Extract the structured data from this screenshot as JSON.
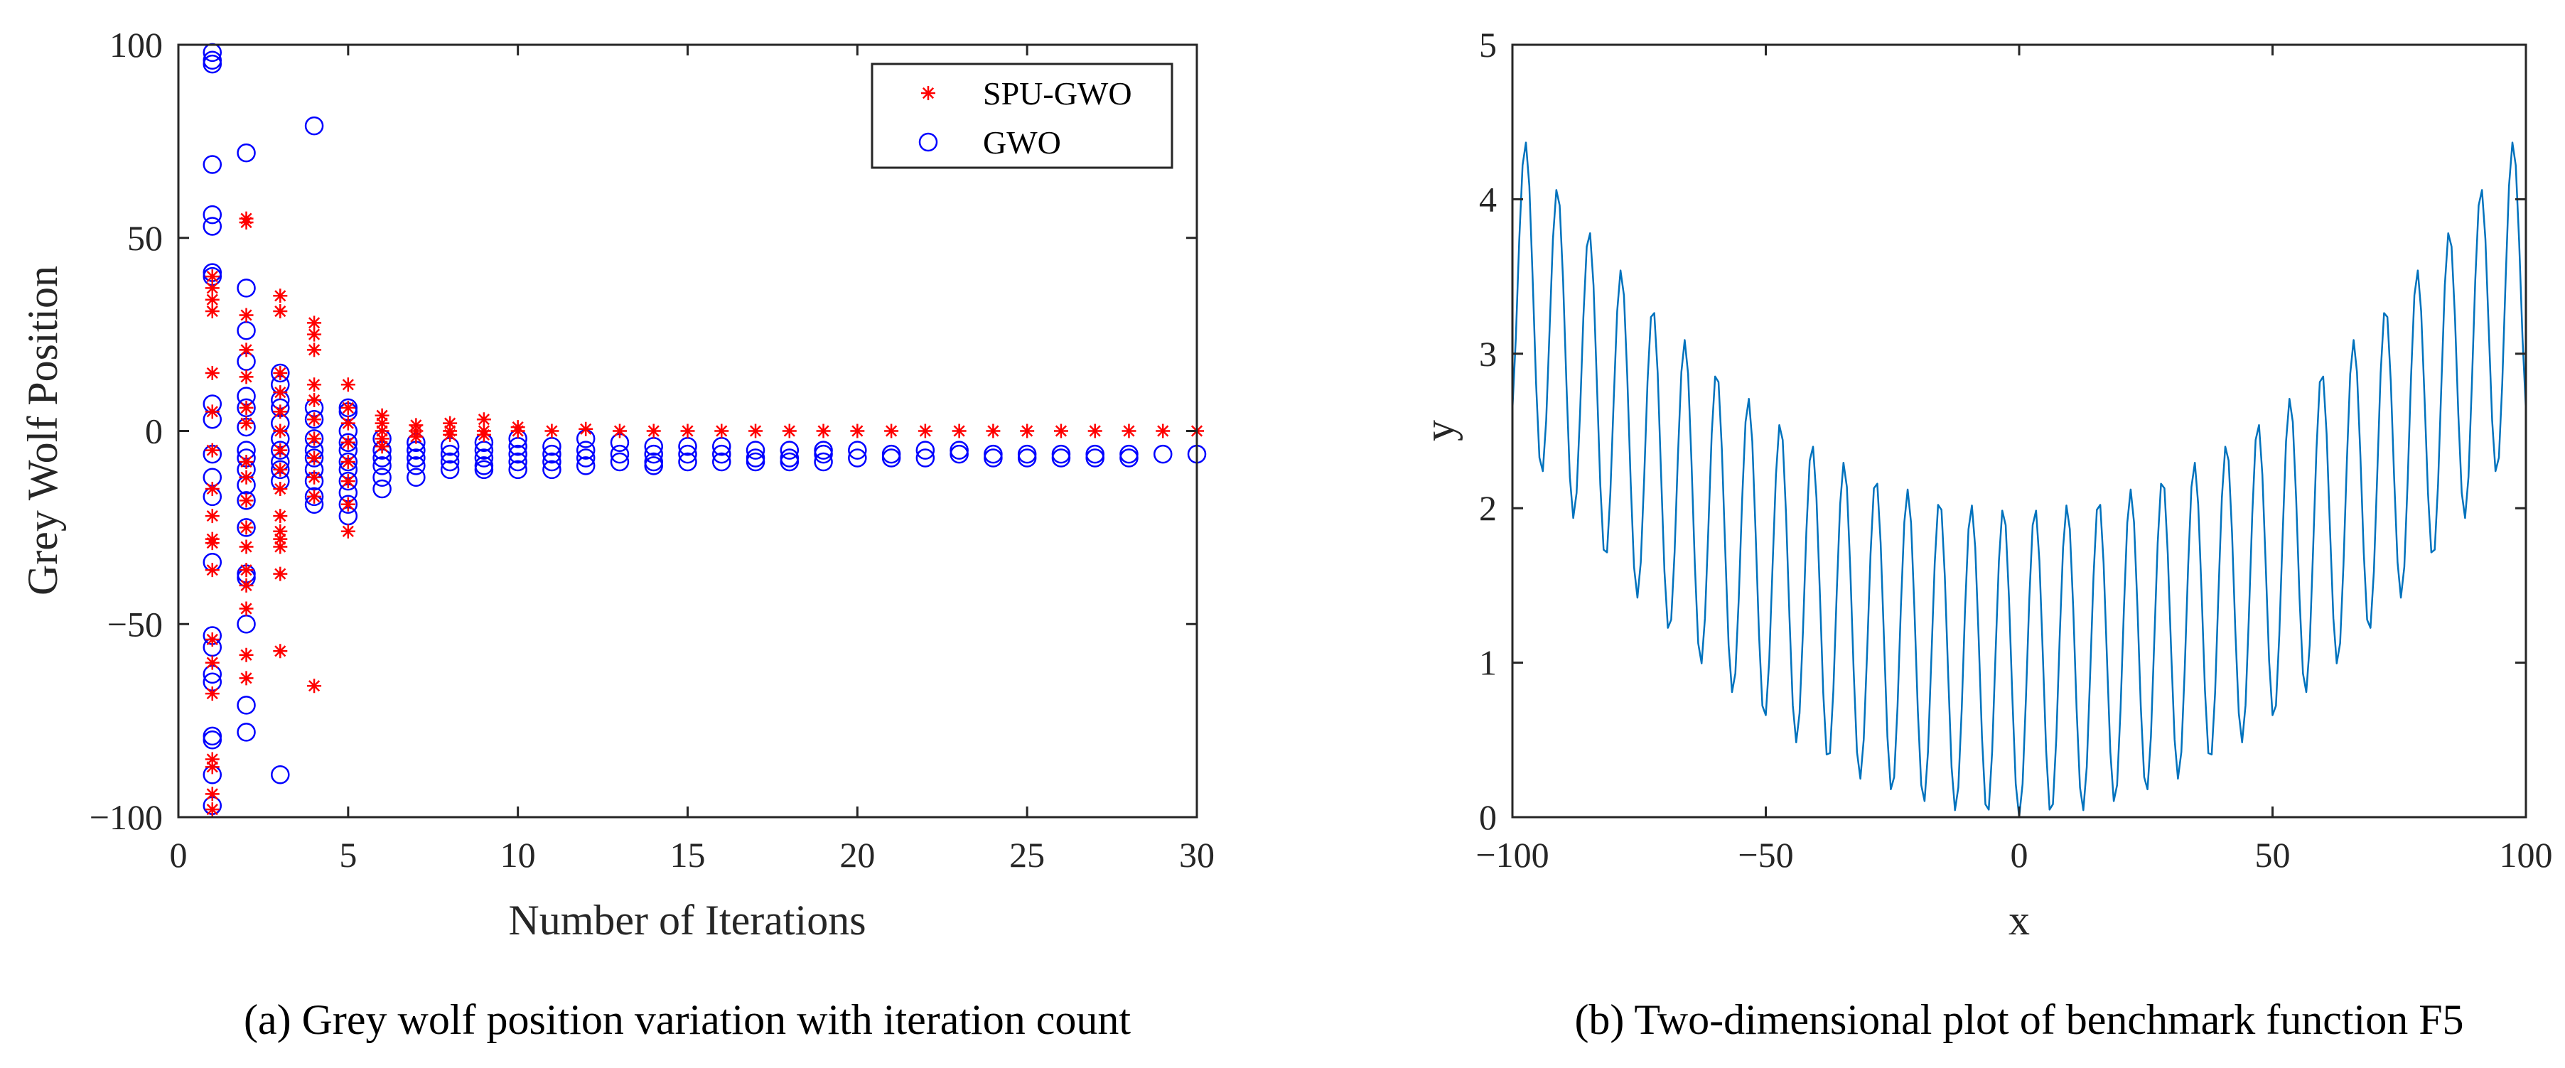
{
  "chart_data": [
    {
      "type": "scatter",
      "xlabel": "Number of Iterations",
      "ylabel": "Grey Wolf Position",
      "xlim": [
        0,
        30
      ],
      "ylim": [
        -100,
        100
      ],
      "xticks": [
        "0",
        "5",
        "10",
        "15",
        "20",
        "25",
        "30"
      ],
      "yticks": [
        "100",
        "50",
        "0",
        "−50",
        "−100"
      ],
      "grid": false,
      "legend_position": "top-right",
      "caption": "(a) Grey wolf position variation with iteration count",
      "series": [
        {
          "name": "SPU-GWO",
          "marker": "asterisk",
          "color": "#ff0000",
          "points": [
            [
              1,
              40
            ],
            [
              1,
              37
            ],
            [
              1,
              34
            ],
            [
              1,
              31
            ],
            [
              1,
              15
            ],
            [
              1,
              5
            ],
            [
              1,
              -5
            ],
            [
              1,
              -15
            ],
            [
              1,
              -22
            ],
            [
              1,
              -28
            ],
            [
              1,
              -29
            ],
            [
              1,
              -36
            ],
            [
              1,
              -54
            ],
            [
              1,
              -60
            ],
            [
              1,
              -68
            ],
            [
              1,
              -85
            ],
            [
              1,
              -87
            ],
            [
              1,
              -94
            ],
            [
              1,
              -98
            ],
            [
              2,
              55
            ],
            [
              2,
              54
            ],
            [
              2,
              30
            ],
            [
              2,
              21
            ],
            [
              2,
              14
            ],
            [
              2,
              6
            ],
            [
              2,
              2
            ],
            [
              2,
              -8
            ],
            [
              2,
              -12
            ],
            [
              2,
              -18
            ],
            [
              2,
              -25
            ],
            [
              2,
              -30
            ],
            [
              2,
              -36
            ],
            [
              2,
              -40
            ],
            [
              2,
              -46
            ],
            [
              2,
              -58
            ],
            [
              2,
              -64
            ],
            [
              3,
              35
            ],
            [
              3,
              31
            ],
            [
              3,
              15
            ],
            [
              3,
              10
            ],
            [
              3,
              5
            ],
            [
              3,
              0
            ],
            [
              3,
              -5
            ],
            [
              3,
              -10
            ],
            [
              3,
              -15
            ],
            [
              3,
              -22
            ],
            [
              3,
              -26
            ],
            [
              3,
              -28
            ],
            [
              3,
              -30
            ],
            [
              3,
              -37
            ],
            [
              3,
              -57
            ],
            [
              4,
              28
            ],
            [
              4,
              25
            ],
            [
              4,
              21
            ],
            [
              4,
              12
            ],
            [
              4,
              8
            ],
            [
              4,
              3
            ],
            [
              4,
              -2
            ],
            [
              4,
              -7
            ],
            [
              4,
              -12
            ],
            [
              4,
              -17
            ],
            [
              4,
              -66
            ],
            [
              5,
              12
            ],
            [
              5,
              6
            ],
            [
              5,
              2
            ],
            [
              5,
              -3
            ],
            [
              5,
              -8
            ],
            [
              5,
              -13
            ],
            [
              5,
              -19
            ],
            [
              5,
              -26
            ],
            [
              6,
              4
            ],
            [
              6,
              2
            ],
            [
              6,
              0
            ],
            [
              6,
              -2
            ],
            [
              6,
              -4
            ],
            [
              7,
              1.5
            ],
            [
              7,
              0
            ],
            [
              7,
              -1.5
            ],
            [
              8,
              2
            ],
            [
              8,
              0
            ],
            [
              8,
              -1
            ],
            [
              9,
              3
            ],
            [
              9,
              0
            ],
            [
              9,
              -1
            ],
            [
              10,
              1
            ],
            [
              10,
              0
            ],
            [
              11,
              0
            ],
            [
              12,
              0.5
            ],
            [
              13,
              0
            ],
            [
              14,
              0
            ],
            [
              15,
              0
            ],
            [
              16,
              0
            ],
            [
              17,
              0
            ],
            [
              18,
              0
            ],
            [
              19,
              0
            ],
            [
              20,
              0
            ],
            [
              21,
              0
            ],
            [
              22,
              0
            ],
            [
              23,
              0
            ],
            [
              24,
              0
            ],
            [
              25,
              0
            ],
            [
              26,
              0
            ],
            [
              27,
              0
            ],
            [
              28,
              0
            ],
            [
              29,
              0
            ],
            [
              30,
              0
            ]
          ]
        },
        {
          "name": "GWO",
          "marker": "circle",
          "color": "#0000ff",
          "points": [
            [
              1,
              98
            ],
            [
              1,
              96
            ],
            [
              1,
              95
            ],
            [
              1,
              69
            ],
            [
              1,
              56
            ],
            [
              1,
              53
            ],
            [
              1,
              41
            ],
            [
              1,
              40
            ],
            [
              1,
              7
            ],
            [
              1,
              3
            ],
            [
              1,
              -6
            ],
            [
              1,
              -12
            ],
            [
              1,
              -17
            ],
            [
              1,
              -34
            ],
            [
              1,
              -53
            ],
            [
              1,
              -56
            ],
            [
              1,
              -63
            ],
            [
              1,
              -65
            ],
            [
              1,
              -79
            ],
            [
              1,
              -80
            ],
            [
              1,
              -89
            ],
            [
              1,
              -97
            ],
            [
              2,
              72
            ],
            [
              2,
              37
            ],
            [
              2,
              26
            ],
            [
              2,
              18
            ],
            [
              2,
              9
            ],
            [
              2,
              6
            ],
            [
              2,
              1
            ],
            [
              2,
              -5
            ],
            [
              2,
              -7
            ],
            [
              2,
              -10
            ],
            [
              2,
              -14
            ],
            [
              2,
              -18
            ],
            [
              2,
              -25
            ],
            [
              2,
              -37
            ],
            [
              2,
              -38
            ],
            [
              2,
              -50
            ],
            [
              2,
              -71
            ],
            [
              2,
              -78
            ],
            [
              3,
              15
            ],
            [
              3,
              12
            ],
            [
              3,
              8
            ],
            [
              3,
              6
            ],
            [
              3,
              2
            ],
            [
              3,
              -2
            ],
            [
              3,
              -5
            ],
            [
              3,
              -8
            ],
            [
              3,
              -10
            ],
            [
              3,
              -13
            ],
            [
              3,
              -89
            ],
            [
              4,
              79
            ],
            [
              4,
              6
            ],
            [
              4,
              3
            ],
            [
              4,
              -2
            ],
            [
              4,
              -5
            ],
            [
              4,
              -7
            ],
            [
              4,
              -10
            ],
            [
              4,
              -13
            ],
            [
              4,
              -17
            ],
            [
              4,
              -19
            ],
            [
              5,
              6
            ],
            [
              5,
              5
            ],
            [
              5,
              0
            ],
            [
              5,
              -3
            ],
            [
              5,
              -5
            ],
            [
              5,
              -8
            ],
            [
              5,
              -10
            ],
            [
              5,
              -13
            ],
            [
              5,
              -16
            ],
            [
              5,
              -19
            ],
            [
              5,
              -22
            ],
            [
              6,
              -2
            ],
            [
              6,
              -5
            ],
            [
              6,
              -7
            ],
            [
              6,
              -9
            ],
            [
              6,
              -12
            ],
            [
              6,
              -15
            ],
            [
              7,
              -3
            ],
            [
              7,
              -5
            ],
            [
              7,
              -7
            ],
            [
              7,
              -9
            ],
            [
              7,
              -12
            ],
            [
              8,
              -4
            ],
            [
              8,
              -6
            ],
            [
              8,
              -8
            ],
            [
              8,
              -10
            ],
            [
              9,
              -3
            ],
            [
              9,
              -5
            ],
            [
              9,
              -7
            ],
            [
              9,
              -9
            ],
            [
              9,
              -10
            ],
            [
              10,
              -2
            ],
            [
              10,
              -4
            ],
            [
              10,
              -6
            ],
            [
              10,
              -8
            ],
            [
              10,
              -10
            ],
            [
              11,
              -4
            ],
            [
              11,
              -6
            ],
            [
              11,
              -8
            ],
            [
              11,
              -10
            ],
            [
              12,
              -2
            ],
            [
              12,
              -5
            ],
            [
              12,
              -7
            ],
            [
              12,
              -9
            ],
            [
              13,
              -3
            ],
            [
              13,
              -6
            ],
            [
              13,
              -8
            ],
            [
              14,
              -4
            ],
            [
              14,
              -6
            ],
            [
              14,
              -8
            ],
            [
              14,
              -9
            ],
            [
              15,
              -4
            ],
            [
              15,
              -6
            ],
            [
              15,
              -8
            ],
            [
              16,
              -4
            ],
            [
              16,
              -6
            ],
            [
              16,
              -8
            ],
            [
              17,
              -5
            ],
            [
              17,
              -7
            ],
            [
              17,
              -8
            ],
            [
              18,
              -5
            ],
            [
              18,
              -7
            ],
            [
              18,
              -8
            ],
            [
              19,
              -5
            ],
            [
              19,
              -6
            ],
            [
              19,
              -8
            ],
            [
              20,
              -5
            ],
            [
              20,
              -7
            ],
            [
              21,
              -6
            ],
            [
              21,
              -7
            ],
            [
              22,
              -5
            ],
            [
              22,
              -7
            ],
            [
              23,
              -5
            ],
            [
              23,
              -6
            ],
            [
              24,
              -6
            ],
            [
              24,
              -7
            ],
            [
              25,
              -6
            ],
            [
              25,
              -7
            ],
            [
              26,
              -6
            ],
            [
              26,
              -7
            ],
            [
              27,
              -6
            ],
            [
              27,
              -7
            ],
            [
              28,
              -6
            ],
            [
              28,
              -7
            ],
            [
              29,
              -6
            ],
            [
              30,
              -6
            ]
          ]
        }
      ]
    },
    {
      "type": "line",
      "xlabel": "x",
      "ylabel": "y",
      "xlim": [
        -100,
        100
      ],
      "ylim": [
        0,
        5
      ],
      "xticks": [
        "−100",
        "−50",
        "0",
        "50",
        "100"
      ],
      "yticks": [
        "5",
        "4",
        "3",
        "2",
        "1",
        "0"
      ],
      "grid": false,
      "color": "#0072bd",
      "caption": "(b) Two-dimensional plot of benchmark function F5",
      "series": [
        {
          "function": "y = x^2/4000 + 1 - cos(x)",
          "x_range": [
            -100,
            100
          ],
          "samples": 301
        }
      ]
    }
  ]
}
